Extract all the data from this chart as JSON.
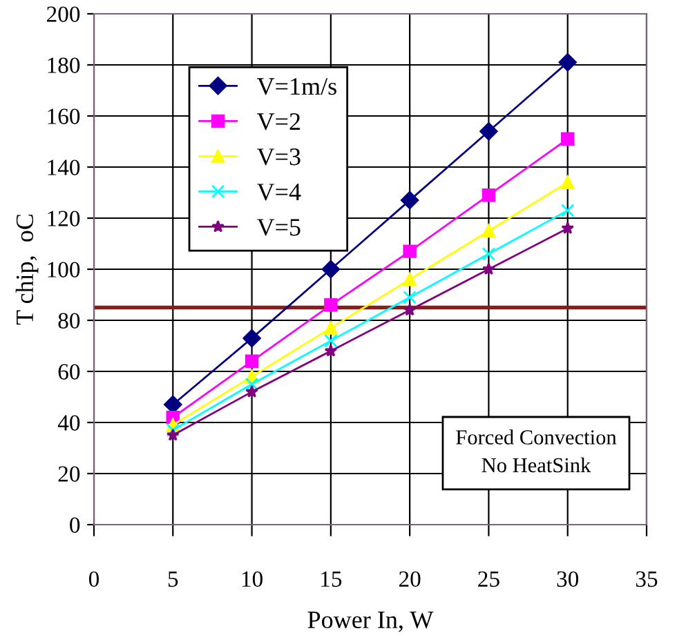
{
  "chart_data": {
    "type": "line",
    "xlabel": "Power In, W",
    "ylabel": "T chip,  oC",
    "x": [
      5,
      10,
      15,
      20,
      25,
      30
    ],
    "series": [
      {
        "name": "V=1m/s",
        "color": "#000080",
        "marker": "diamond",
        "values": [
          47,
          73,
          100,
          127,
          154,
          181
        ]
      },
      {
        "name": "V=2",
        "color": "#ff00ff",
        "marker": "square",
        "values": [
          42,
          64,
          86,
          107,
          129,
          151
        ]
      },
      {
        "name": "V=3",
        "color": "#ffff00",
        "marker": "triangle",
        "values": [
          39,
          58,
          77,
          96,
          115,
          134
        ]
      },
      {
        "name": "V=4",
        "color": "#00ffff",
        "marker": "cross",
        "values": [
          37,
          55,
          72,
          89,
          106,
          123
        ]
      },
      {
        "name": "V=5",
        "color": "#800080",
        "marker": "star",
        "values": [
          35,
          52,
          68,
          84,
          100,
          116
        ]
      }
    ],
    "xlim": [
      0,
      35
    ],
    "xticks": [
      0,
      5,
      10,
      15,
      20,
      25,
      30,
      35
    ],
    "ylim": [
      0,
      200
    ],
    "yticks": [
      0,
      20,
      40,
      60,
      80,
      100,
      120,
      140,
      160,
      180,
      200
    ],
    "ref_lines": [
      {
        "axis": "y",
        "value": 85,
        "color": "#8b1a1a"
      }
    ],
    "annotations": [
      "Forced Convection\nNo HeatSink"
    ],
    "grid": true,
    "legend": "top left",
    "line_style": "solid"
  }
}
